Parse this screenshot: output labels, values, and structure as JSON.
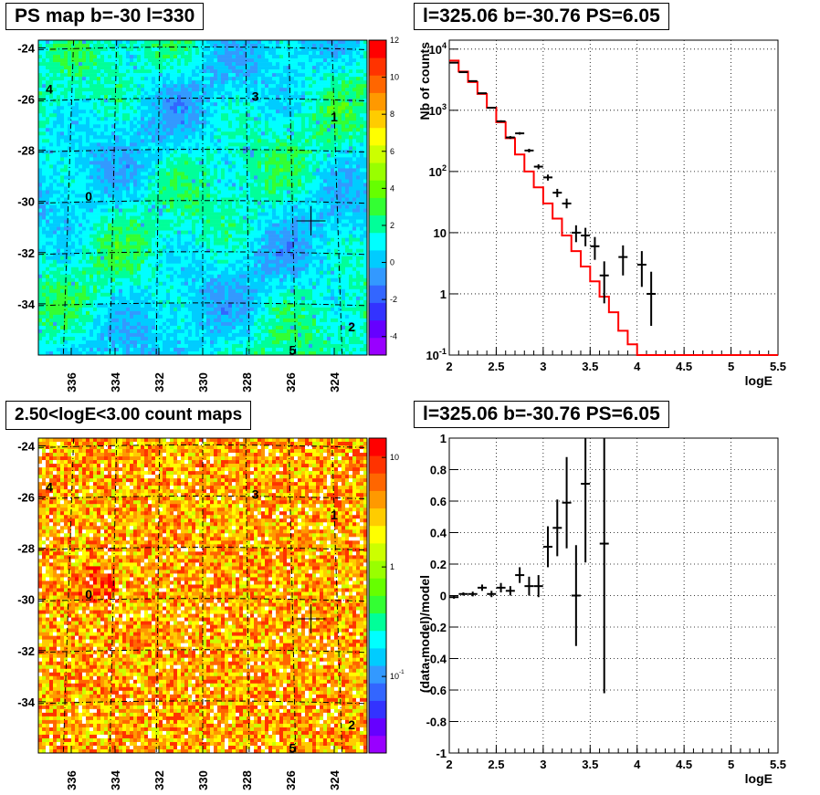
{
  "colors": {
    "model_line": "#ff0000",
    "data_points": "#000000",
    "grid": "#000000"
  },
  "panels": {
    "ps_map": {
      "title": "PS map b=-30 l=330",
      "palette_labels": [
        "12",
        "10",
        "8",
        "6",
        "4",
        "2",
        "0",
        "-2",
        "-4"
      ],
      "markers": [
        "0",
        "1",
        "2",
        "3",
        "4",
        "5"
      ]
    },
    "count_map": {
      "title": "2.50<logE<3.00 count maps",
      "palette_labels": [
        "10",
        "1",
        "10-1"
      ],
      "markers": [
        "0",
        "1",
        "2",
        "3",
        "4",
        "5"
      ]
    },
    "spectrum": {
      "title": "l=325.06 b=-30.76 PS=6.05",
      "ylabel": "Nb of counts",
      "xlabel": "logE"
    },
    "residual": {
      "title": "l=325.06 b=-30.76 PS=6.05",
      "ylabel": "(data-model)/model",
      "xlabel": "logE"
    }
  },
  "chart_data": [
    {
      "type": "heatmap",
      "title": "PS map b=-30 l=330",
      "xlabel": "",
      "ylabel": "",
      "x_ticks": [
        "336",
        "334",
        "332",
        "330",
        "328",
        "326",
        "324"
      ],
      "y_ticks": [
        "-24",
        "-26",
        "-28",
        "-30",
        "-32",
        "-34"
      ],
      "xlim": [
        337.5,
        322.5
      ],
      "ylim": [
        -36,
        -23.7
      ],
      "z_range": [
        -5,
        12
      ],
      "point_source": {
        "l": 325.06,
        "b": -30.76
      },
      "markers": [
        {
          "label": "0",
          "l": 335.2,
          "b": -29.8
        },
        {
          "label": "1",
          "l": 324.0,
          "b": -26.7
        },
        {
          "label": "2",
          "l": 323.2,
          "b": -34.9
        },
        {
          "label": "3",
          "l": 327.6,
          "b": -25.9
        },
        {
          "label": "4",
          "l": 337.0,
          "b": -25.6
        },
        {
          "label": "5",
          "l": 325.9,
          "b": -35.8
        }
      ],
      "grid": true
    },
    {
      "type": "heatmap",
      "title": "2.50<logE<3.00 count maps",
      "xlabel": "",
      "ylabel": "",
      "x_ticks": [
        "336",
        "334",
        "332",
        "330",
        "328",
        "326",
        "324"
      ],
      "y_ticks": [
        "-24",
        "-26",
        "-28",
        "-30",
        "-32",
        "-34"
      ],
      "xlim": [
        337.5,
        322.5
      ],
      "ylim": [
        -36,
        -23.7
      ],
      "z_scale": "log",
      "z_range": [
        0.02,
        15
      ],
      "point_source": {
        "l": 325.06,
        "b": -30.76
      },
      "markers": [
        {
          "label": "0",
          "l": 335.2,
          "b": -29.8
        },
        {
          "label": "1",
          "l": 324.0,
          "b": -26.7
        },
        {
          "label": "2",
          "l": 323.2,
          "b": -34.9
        },
        {
          "label": "3",
          "l": 327.6,
          "b": -25.9
        },
        {
          "label": "4",
          "l": 337.0,
          "b": -25.6
        },
        {
          "label": "5",
          "l": 325.9,
          "b": -35.8
        }
      ],
      "grid": true
    },
    {
      "type": "line",
      "title": "l=325.06 b=-30.76 PS=6.05",
      "xlabel": "logE",
      "ylabel": "Nb of counts",
      "xlim": [
        2,
        5.5
      ],
      "ylim": [
        0.1,
        14000
      ],
      "y_scale": "log",
      "x_ticks": [
        "2",
        "2.5",
        "3",
        "3.5",
        "4",
        "4.5",
        "5",
        "5.5"
      ],
      "y_ticks": [
        "10-1",
        "1",
        "10",
        "102",
        "103",
        "104"
      ],
      "grid": true,
      "series": [
        {
          "kind": "step",
          "x_edges": [
            2.0,
            2.1,
            2.2,
            2.3,
            2.4,
            2.5,
            2.6,
            2.7,
            2.8,
            2.9,
            3.0,
            3.1,
            3.2,
            3.3,
            3.4,
            3.5,
            3.6,
            3.7,
            3.8,
            3.9,
            4.0,
            4.1,
            4.2,
            4.3,
            4.4,
            4.5,
            4.6,
            4.7,
            4.8,
            4.9,
            5.0,
            5.1,
            5.2,
            5.3,
            5.4,
            5.5
          ],
          "values": [
            6500,
            4300,
            2900,
            1850,
            1100,
            640,
            350,
            190,
            100,
            55,
            30,
            17,
            9,
            5,
            2.8,
            1.6,
            0.9,
            0.5,
            0.25,
            0.15,
            0.1,
            0.1,
            0.1,
            0.1,
            0.1,
            0.1,
            0.1,
            0.1,
            0.1,
            0.1,
            0.1,
            0.1,
            0.1,
            0.1,
            0.1
          ]
        },
        {
          "kind": "errorbar",
          "x": [
            2.05,
            2.15,
            2.25,
            2.35,
            2.45,
            2.55,
            2.65,
            2.75,
            2.85,
            2.95,
            3.05,
            3.15,
            3.25,
            3.35,
            3.45,
            3.55,
            3.65,
            3.85,
            4.05,
            4.15
          ],
          "y": [
            6000,
            4200,
            3000,
            1900,
            1100,
            660,
            360,
            420,
            220,
            120,
            80,
            45,
            30,
            10,
            9,
            6,
            2,
            4,
            3,
            1
          ],
          "y_low": [
            5920,
            4135,
            2945,
            1856,
            1067,
            634,
            341,
            400,
            205,
            109,
            71,
            38,
            25,
            7,
            6,
            3.6,
            0.7,
            2,
            1.3,
            0.3
          ],
          "y_high": [
            6080,
            4265,
            3055,
            1944,
            1133,
            686,
            379,
            440,
            235,
            131,
            89,
            52,
            36,
            13.2,
            12,
            8.5,
            3.4,
            6.2,
            5,
            2.3
          ]
        }
      ]
    },
    {
      "type": "scatter",
      "title": "l=325.06 b=-30.76 PS=6.05",
      "xlabel": "logE",
      "ylabel": "(data-model)/model",
      "xlim": [
        2,
        5.5
      ],
      "ylim": [
        -1,
        1
      ],
      "x_ticks": [
        "2",
        "2.5",
        "3",
        "3.5",
        "4",
        "4.5",
        "5",
        "5.5"
      ],
      "y_ticks": [
        "-1",
        "-0.8",
        "-0.6",
        "-0.4",
        "-0.2",
        "0",
        "0.2",
        "0.4",
        "0.6",
        "0.8",
        "1"
      ],
      "grid": true,
      "series": [
        {
          "kind": "errorbar",
          "x": [
            2.05,
            2.15,
            2.25,
            2.35,
            2.45,
            2.55,
            2.65,
            2.75,
            2.85,
            2.95,
            3.05,
            3.15,
            3.25,
            3.35,
            3.45,
            3.65
          ],
          "y": [
            -0.01,
            0.01,
            0.01,
            0.05,
            0.01,
            0.05,
            0.03,
            0.13,
            0.06,
            0.06,
            0.31,
            0.43,
            0.59,
            0.0,
            0.71,
            0.33
          ],
          "err": [
            0.01,
            0.01,
            0.015,
            0.02,
            0.02,
            0.03,
            0.03,
            0.05,
            0.06,
            0.07,
            0.13,
            0.18,
            0.29,
            0.32,
            0.5,
            0.95
          ]
        }
      ]
    }
  ]
}
